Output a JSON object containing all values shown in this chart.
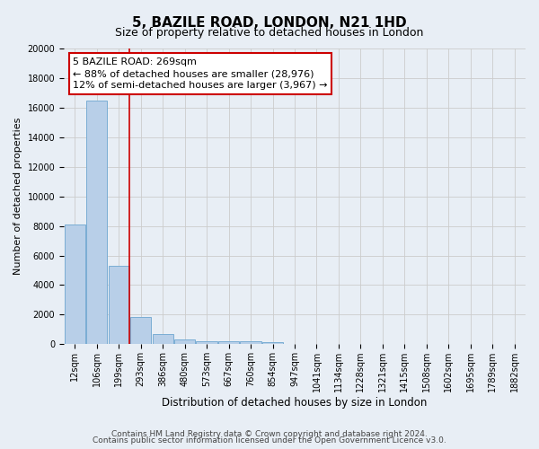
{
  "title": "5, BAZILE ROAD, LONDON, N21 1HD",
  "subtitle": "Size of property relative to detached houses in London",
  "xlabel": "Distribution of detached houses by size in London",
  "ylabel": "Number of detached properties",
  "categories": [
    "12sqm",
    "106sqm",
    "199sqm",
    "293sqm",
    "386sqm",
    "480sqm",
    "573sqm",
    "667sqm",
    "760sqm",
    "854sqm",
    "947sqm",
    "1041sqm",
    "1134sqm",
    "1228sqm",
    "1321sqm",
    "1415sqm",
    "1508sqm",
    "1602sqm",
    "1695sqm",
    "1789sqm",
    "1882sqm"
  ],
  "values": [
    8100,
    16500,
    5300,
    1850,
    700,
    320,
    230,
    200,
    175,
    160,
    0,
    0,
    0,
    0,
    0,
    0,
    0,
    0,
    0,
    0,
    0
  ],
  "bar_color": "#b8cfe8",
  "bar_edge_color": "#7aadd4",
  "red_line_x": 2.5,
  "annotation_line1": "5 BAZILE ROAD: 269sqm",
  "annotation_line2": "← 88% of detached houses are smaller (28,976)",
  "annotation_line3": "12% of semi-detached houses are larger (3,967) →",
  "annotation_box_color": "#ffffff",
  "annotation_box_edge": "#cc0000",
  "ylim": [
    0,
    20000
  ],
  "yticks": [
    0,
    2000,
    4000,
    6000,
    8000,
    10000,
    12000,
    14000,
    16000,
    18000,
    20000
  ],
  "grid_color": "#cccccc",
  "background_color": "#e8eef5",
  "footer_line1": "Contains HM Land Registry data © Crown copyright and database right 2024.",
  "footer_line2": "Contains public sector information licensed under the Open Government Licence v3.0.",
  "title_fontsize": 11,
  "subtitle_fontsize": 9,
  "xlabel_fontsize": 8.5,
  "ylabel_fontsize": 8,
  "tick_fontsize": 7,
  "annotation_fontsize": 8,
  "footer_fontsize": 6.5
}
